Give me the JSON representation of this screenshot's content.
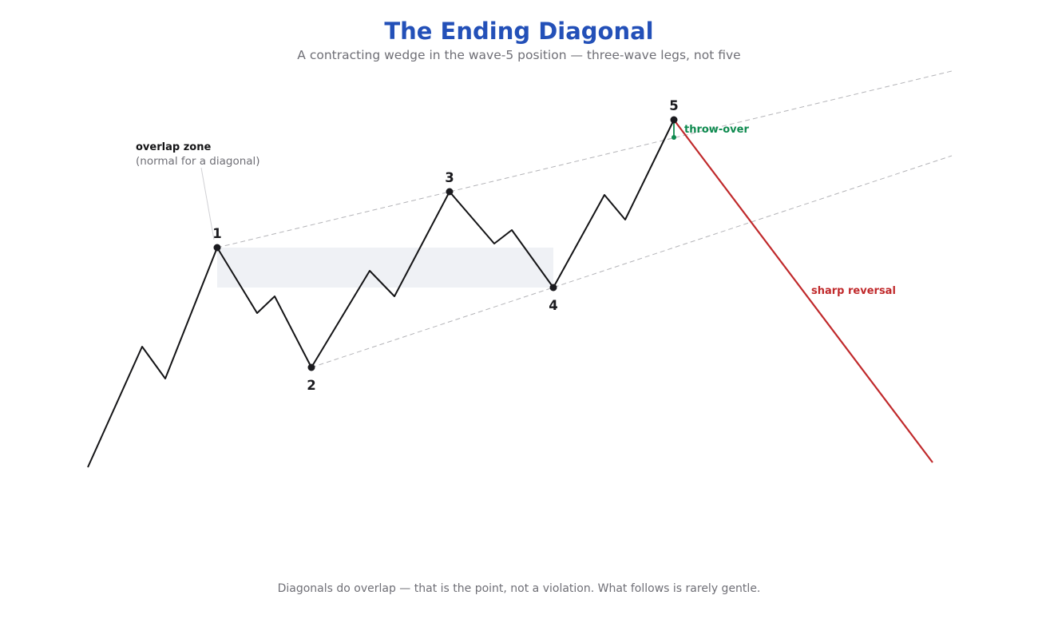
{
  "header": {
    "title": "The Ending Diagonal",
    "subtitle": "A contracting wedge in the wave-5 position — three-wave legs, not five"
  },
  "footer": {
    "note": "Diagonals do overlap — that is the point, not a violation. What follows is rarely gentle."
  },
  "waves": {
    "labels": [
      "1",
      "2",
      "3",
      "4",
      "5"
    ]
  },
  "annotations": {
    "overlap_title": "overlap zone",
    "overlap_note": "(normal for a diagonal)",
    "throw_over": "throw-over",
    "reversal": "sharp reversal"
  },
  "colors": {
    "title": "#2350b8",
    "price_path": "#141416",
    "reversal": "#c0292b",
    "throw_over": "#0e8a4f",
    "trendline": "#b4b4b8",
    "overlap_fill": "#eff1f5",
    "muted_text": "#6f6f76"
  }
}
